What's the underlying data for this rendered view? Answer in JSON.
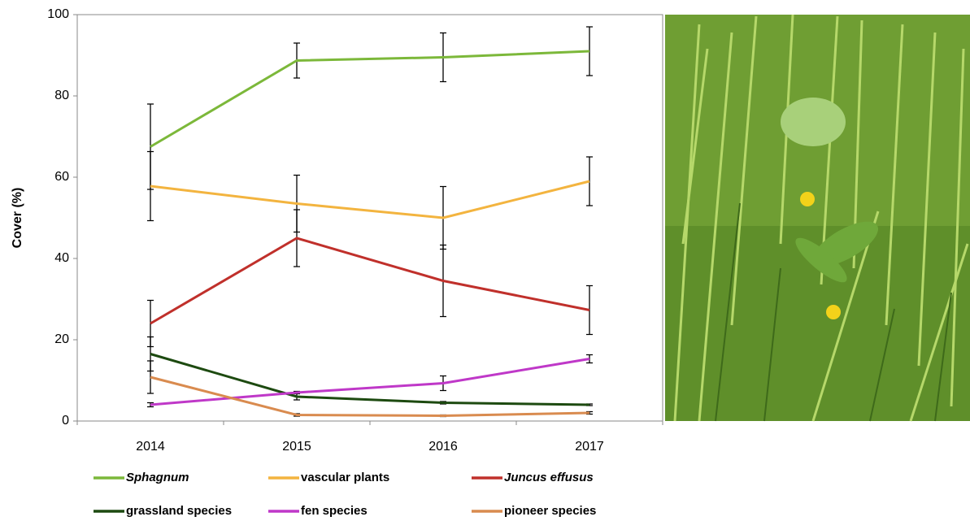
{
  "chart_data": {
    "type": "line",
    "y_label": "Cover (%)",
    "categories": [
      "2014",
      "2015",
      "2016",
      "2017"
    ],
    "ylim": [
      0,
      100
    ],
    "yticks": [
      0,
      20,
      40,
      60,
      80,
      100
    ],
    "series": [
      {
        "name": "Sphagnum",
        "italic": true,
        "color": "#7cb83a",
        "values": [
          67.5,
          88.7,
          89.5,
          91
        ],
        "errors": [
          10.5,
          4.3,
          6,
          6
        ]
      },
      {
        "name": "vascular plants",
        "color": "#f3b43f",
        "values": [
          57.8,
          53.5,
          50,
          59
        ],
        "errors": [
          8.5,
          7,
          7.7,
          6
        ]
      },
      {
        "name": "Juncus effusus",
        "italic": true,
        "color": "#c0302b",
        "values": [
          24,
          45,
          34.5,
          27.3
        ],
        "errors": [
          5.7,
          7,
          8.8,
          6
        ]
      },
      {
        "name": "grassland species",
        "color": "#1d4a10",
        "values": [
          16.5,
          6,
          4.5,
          4
        ],
        "errors": [
          4.2,
          0.8,
          0.3,
          0.2
        ]
      },
      {
        "name": "fen species",
        "color": "#bf38c8",
        "values": [
          4,
          7,
          9.3,
          15.3
        ],
        "errors": [
          0.5,
          0.3,
          1.8,
          1
        ]
      },
      {
        "name": "pioneer species",
        "color": "#d98b4f",
        "values": [
          10.8,
          1.5,
          1.3,
          2
        ],
        "errors": [
          4,
          0.3,
          0.2,
          0.3
        ]
      }
    ]
  }
}
